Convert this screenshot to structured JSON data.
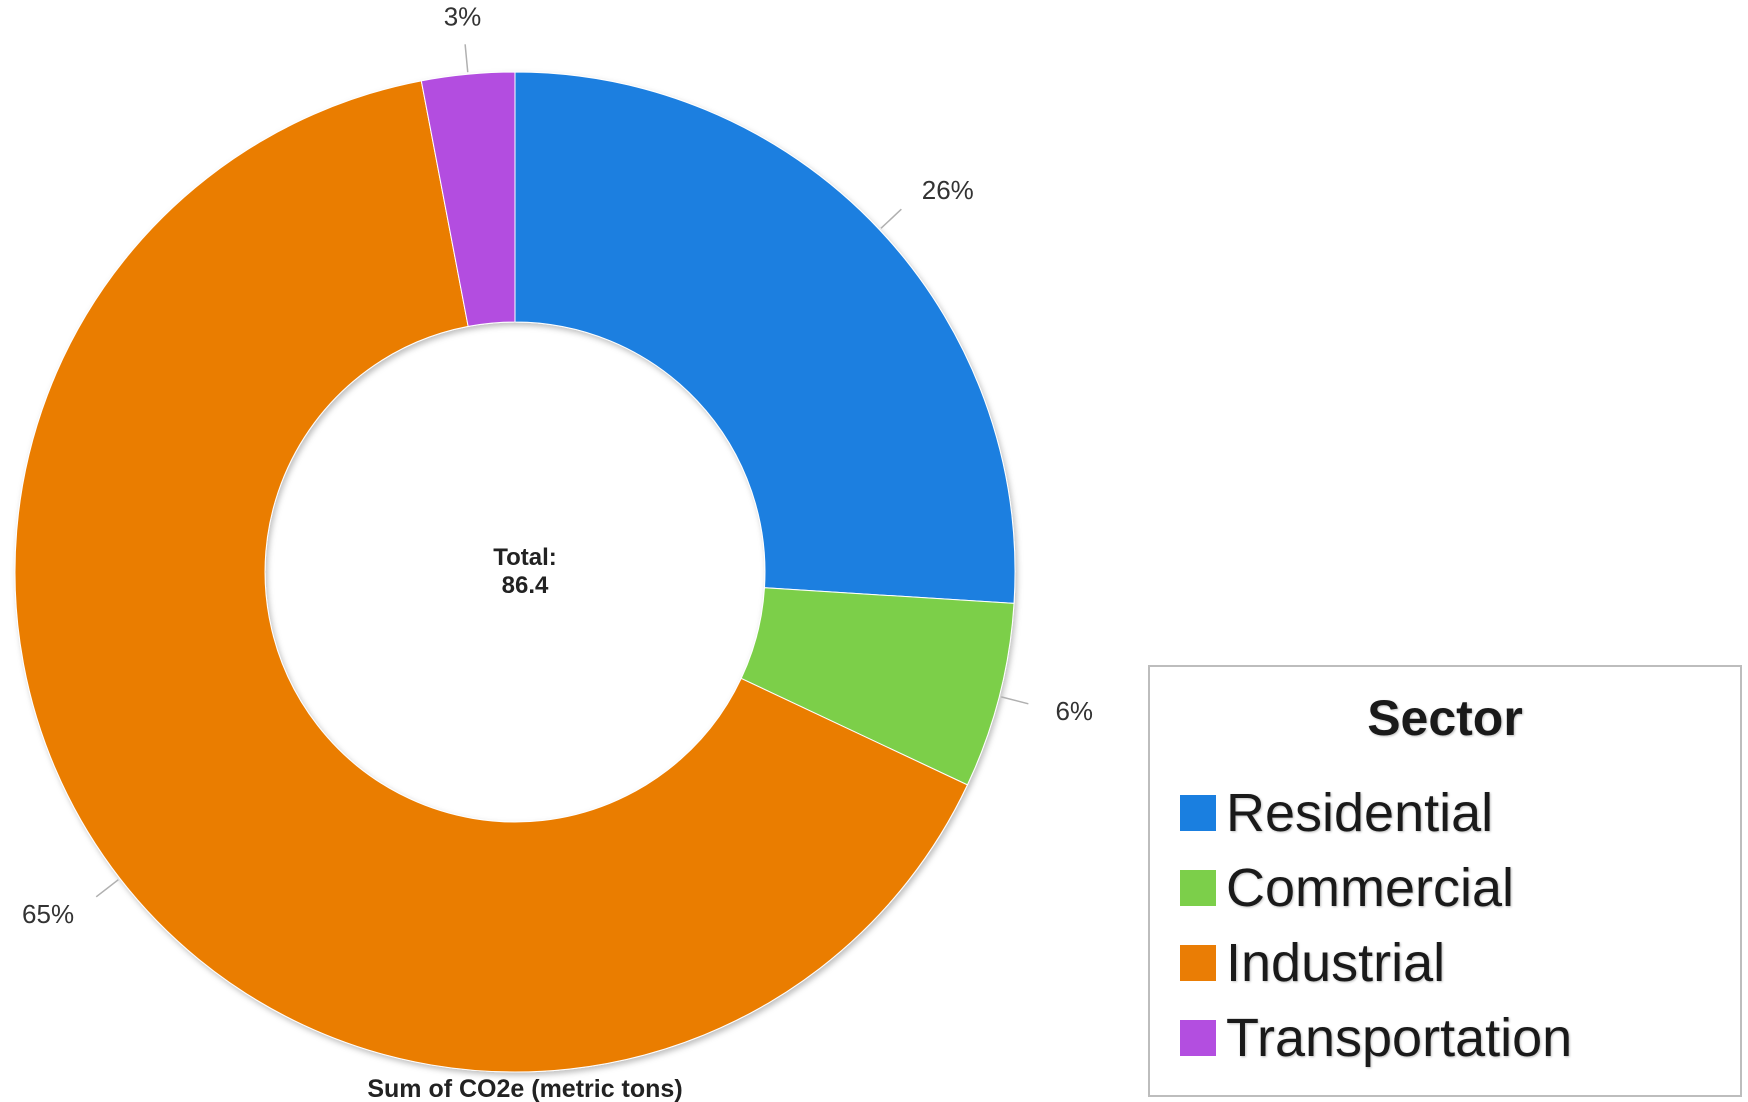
{
  "chart_data": {
    "type": "pie",
    "variant": "donut",
    "slices": [
      {
        "name": "Residential",
        "percent": 26,
        "label": "26%",
        "color": "#1a7fe0"
      },
      {
        "name": "Commercial",
        "percent": 6,
        "label": "6%",
        "color": "#7ccf4a"
      },
      {
        "name": "Industrial",
        "percent": 65,
        "label": "65%",
        "color": "#ea7d05"
      },
      {
        "name": "Transportation",
        "percent": 3,
        "label": "3%",
        "color": "#b34ee0"
      }
    ],
    "center_label": {
      "line1": "Total:",
      "line2": "86.4"
    },
    "axis_title": "Sum of CO2e (metric tons)",
    "legend": {
      "title": "Sector",
      "placement": "bottom-right"
    }
  }
}
